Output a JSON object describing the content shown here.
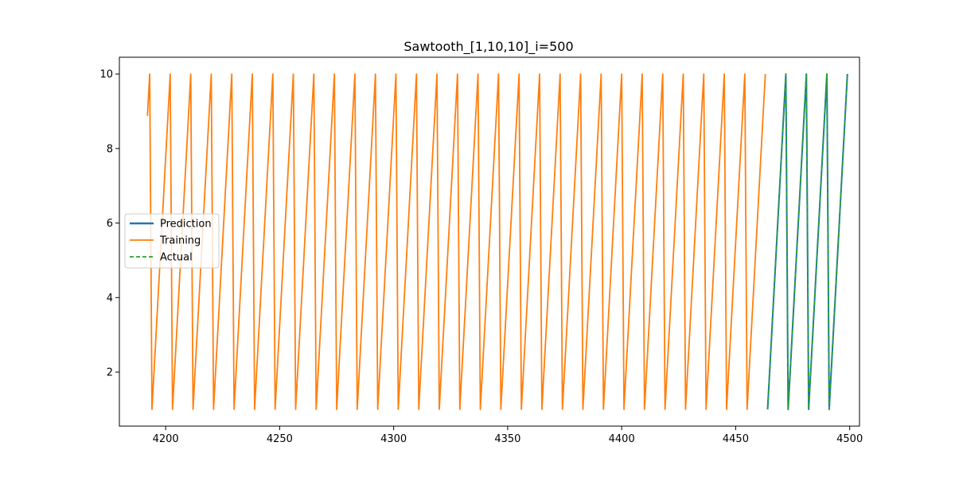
{
  "chart_data": {
    "type": "line",
    "title": "Sawtooth_[1,10,10]_i=500",
    "xlabel": "",
    "ylabel": "",
    "xlim": [
      4179.7,
      4504.3
    ],
    "ylim": [
      0.55,
      10.45
    ],
    "x_ticks": [
      4200,
      4250,
      4300,
      4350,
      4400,
      4450,
      4500
    ],
    "y_ticks": [
      2,
      4,
      6,
      8,
      10
    ],
    "grid": false,
    "legend_position": "center-left",
    "sawtooth": {
      "period": 9,
      "min": 1,
      "max": 10,
      "peak_x": 4193,
      "points_per_period": 9
    },
    "series": [
      {
        "name": "Prediction",
        "color": "#1f77b4",
        "line_style": "solid",
        "x_range": [
          4464,
          4499
        ]
      },
      {
        "name": "Training",
        "color": "#ff7f0e",
        "line_style": "solid",
        "x_range": [
          4192,
          4463
        ],
        "start_value": 8.875
      },
      {
        "name": "Actual",
        "color": "#2ca02c",
        "line_style": "dashed",
        "x_range": [
          4464,
          4499
        ]
      }
    ]
  }
}
